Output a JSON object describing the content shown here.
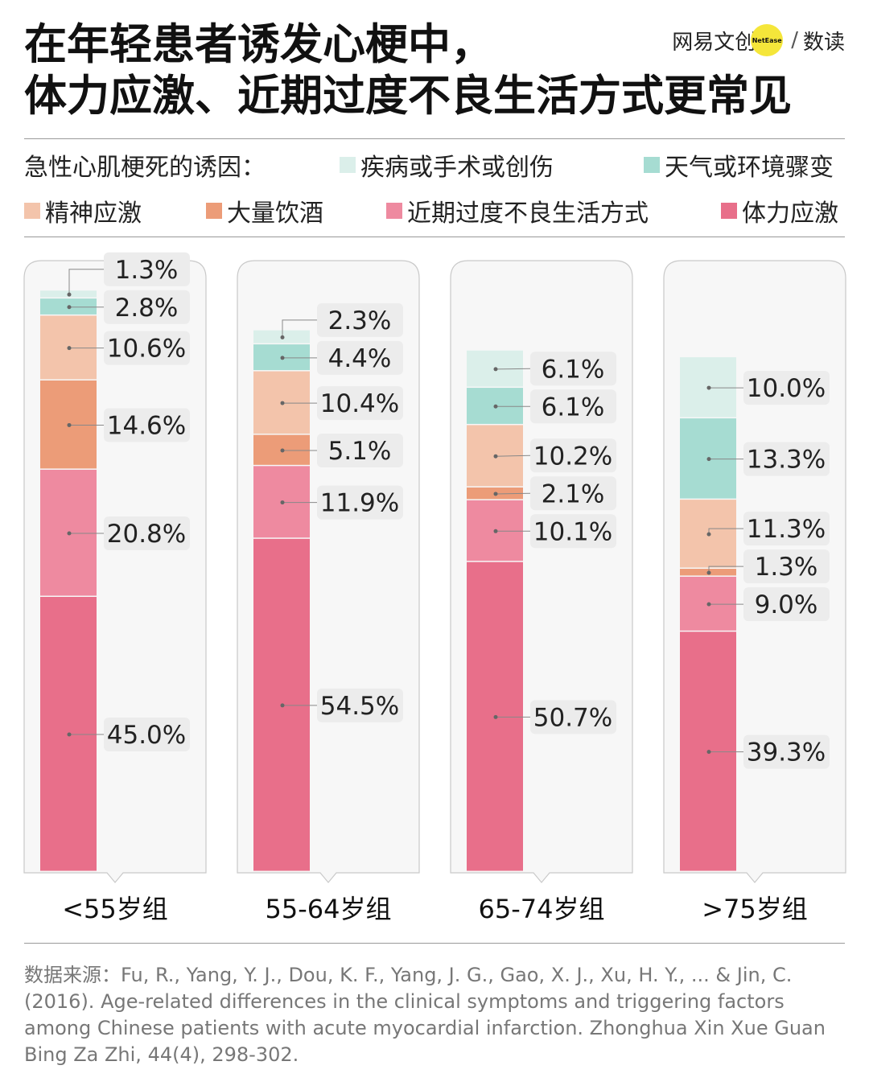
{
  "title_lines": [
    "在年轻患者诱发心梗中，",
    "体力应激、近期过度不良生活方式更常见"
  ],
  "brand": {
    "name": "网易文创",
    "badge": "NetEase",
    "separator": "/",
    "section": "数读"
  },
  "legend_title": "急性心肌梗死的诱因：",
  "colors": {
    "疾病或手术或创伤": "#dbefea",
    "天气或环境骤变": "#a6dcd2",
    "精神应激": "#f3c4ab",
    "大量饮酒": "#ec9c78",
    "近期过度不良生活方式": "#ee8aa0",
    "体力应激": "#e86f8a"
  },
  "chart_data": {
    "type": "bar",
    "stacked": true,
    "unit": "%",
    "categories": [
      "<55岁组",
      "55-64岁组",
      "65-74岁组",
      ">75岁组"
    ],
    "series": [
      {
        "name": "体力应激",
        "values": [
          45.0,
          54.5,
          50.7,
          39.3
        ]
      },
      {
        "name": "近期过度不良生活方式",
        "values": [
          20.8,
          11.9,
          10.1,
          9.0
        ]
      },
      {
        "name": "大量饮酒",
        "values": [
          14.6,
          5.1,
          2.1,
          1.3
        ]
      },
      {
        "name": "精神应激",
        "values": [
          10.6,
          10.4,
          10.2,
          11.3
        ]
      },
      {
        "name": "天气或环境骤变",
        "values": [
          2.8,
          4.4,
          6.1,
          13.3
        ]
      },
      {
        "name": "疾病或手术或创伤",
        "values": [
          1.3,
          2.3,
          6.1,
          10.0
        ]
      }
    ],
    "labels": [
      [
        "45.0%",
        "20.8%",
        "14.6%",
        "10.6%",
        "2.8%",
        "1.3%"
      ],
      [
        "54.5%",
        "11.9%",
        "5.1%",
        "10.4%",
        "4.4%",
        "2.3%"
      ],
      [
        "50.7%",
        "10.1%",
        "2.1%",
        "10.2%",
        "6.1%",
        "6.1%"
      ],
      [
        "39.3%",
        "9.0%",
        "1.3%",
        "11.3%",
        "13.3%",
        "10.0%"
      ]
    ]
  },
  "source": "数据来源：Fu, R., Yang, Y. J., Dou, K. F., Yang, J. G., Gao, X. J., Xu, H. Y., ... & Jin, C. (2016). Age-related differences in the clinical symptoms and triggering factors among Chinese patients with acute myocardial infarction. Zhonghua Xin Xue Guan Bing Za Zhi, 44(4), 298-302."
}
